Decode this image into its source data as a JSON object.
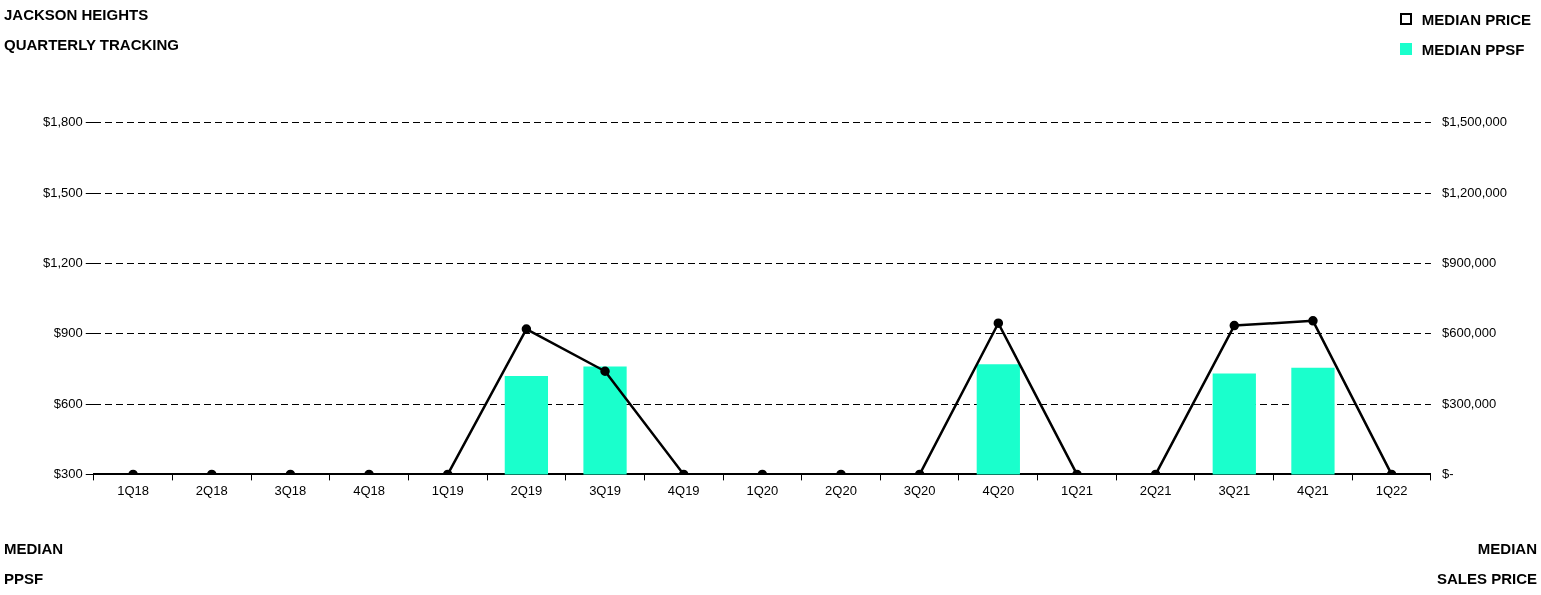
{
  "chart_data": {
    "type": "bar",
    "title": "JACKSON HEIGHTS",
    "subtitle": "QUARTERLY TRACKING",
    "ylabel": "MEDIAN\nPPSF",
    "y2label": "MEDIAN\nSALES PRICE",
    "categories": [
      "1Q18",
      "2Q18",
      "3Q18",
      "4Q18",
      "1Q19",
      "2Q19",
      "3Q19",
      "4Q19",
      "1Q20",
      "2Q20",
      "3Q20",
      "4Q20",
      "1Q21",
      "2Q21",
      "3Q21",
      "4Q21",
      "1Q22"
    ],
    "series": [
      {
        "name": "MEDIAN PRICE",
        "type": "line",
        "axis": "y2",
        "color": "#000000",
        "marker": "circle",
        "values": [
          0,
          0,
          0,
          0,
          0,
          620000,
          440000,
          0,
          0,
          0,
          0,
          645000,
          0,
          0,
          635000,
          655000,
          0
        ]
      },
      {
        "name": "MEDIAN PPSF",
        "type": "bar",
        "color": "#1affcc",
        "values": [
          null,
          null,
          null,
          null,
          null,
          720,
          760,
          null,
          null,
          null,
          null,
          770,
          null,
          null,
          730,
          755,
          null
        ]
      }
    ],
    "ylim": [
      300,
      1800
    ],
    "yticks": [
      {
        "value": 300,
        "label": "$300"
      },
      {
        "value": 600,
        "label": "$600"
      },
      {
        "value": 900,
        "label": "$900"
      },
      {
        "value": 1200,
        "label": "$1,200"
      },
      {
        "value": 1500,
        "label": "$1,500"
      },
      {
        "value": 1800,
        "label": "$1,800"
      }
    ],
    "y2lim": [
      0,
      1500000
    ],
    "y2ticks": [
      {
        "value": 0,
        "label": "$-"
      },
      {
        "value": 300000,
        "label": "$300,000"
      },
      {
        "value": 600000,
        "label": "$600,000"
      },
      {
        "value": 900000,
        "label": "$900,000"
      },
      {
        "value": 1200000,
        "label": "$1,200,000"
      },
      {
        "value": 1500000,
        "label": "$1,500,000"
      }
    ],
    "grid": "y",
    "legend": "top right"
  }
}
